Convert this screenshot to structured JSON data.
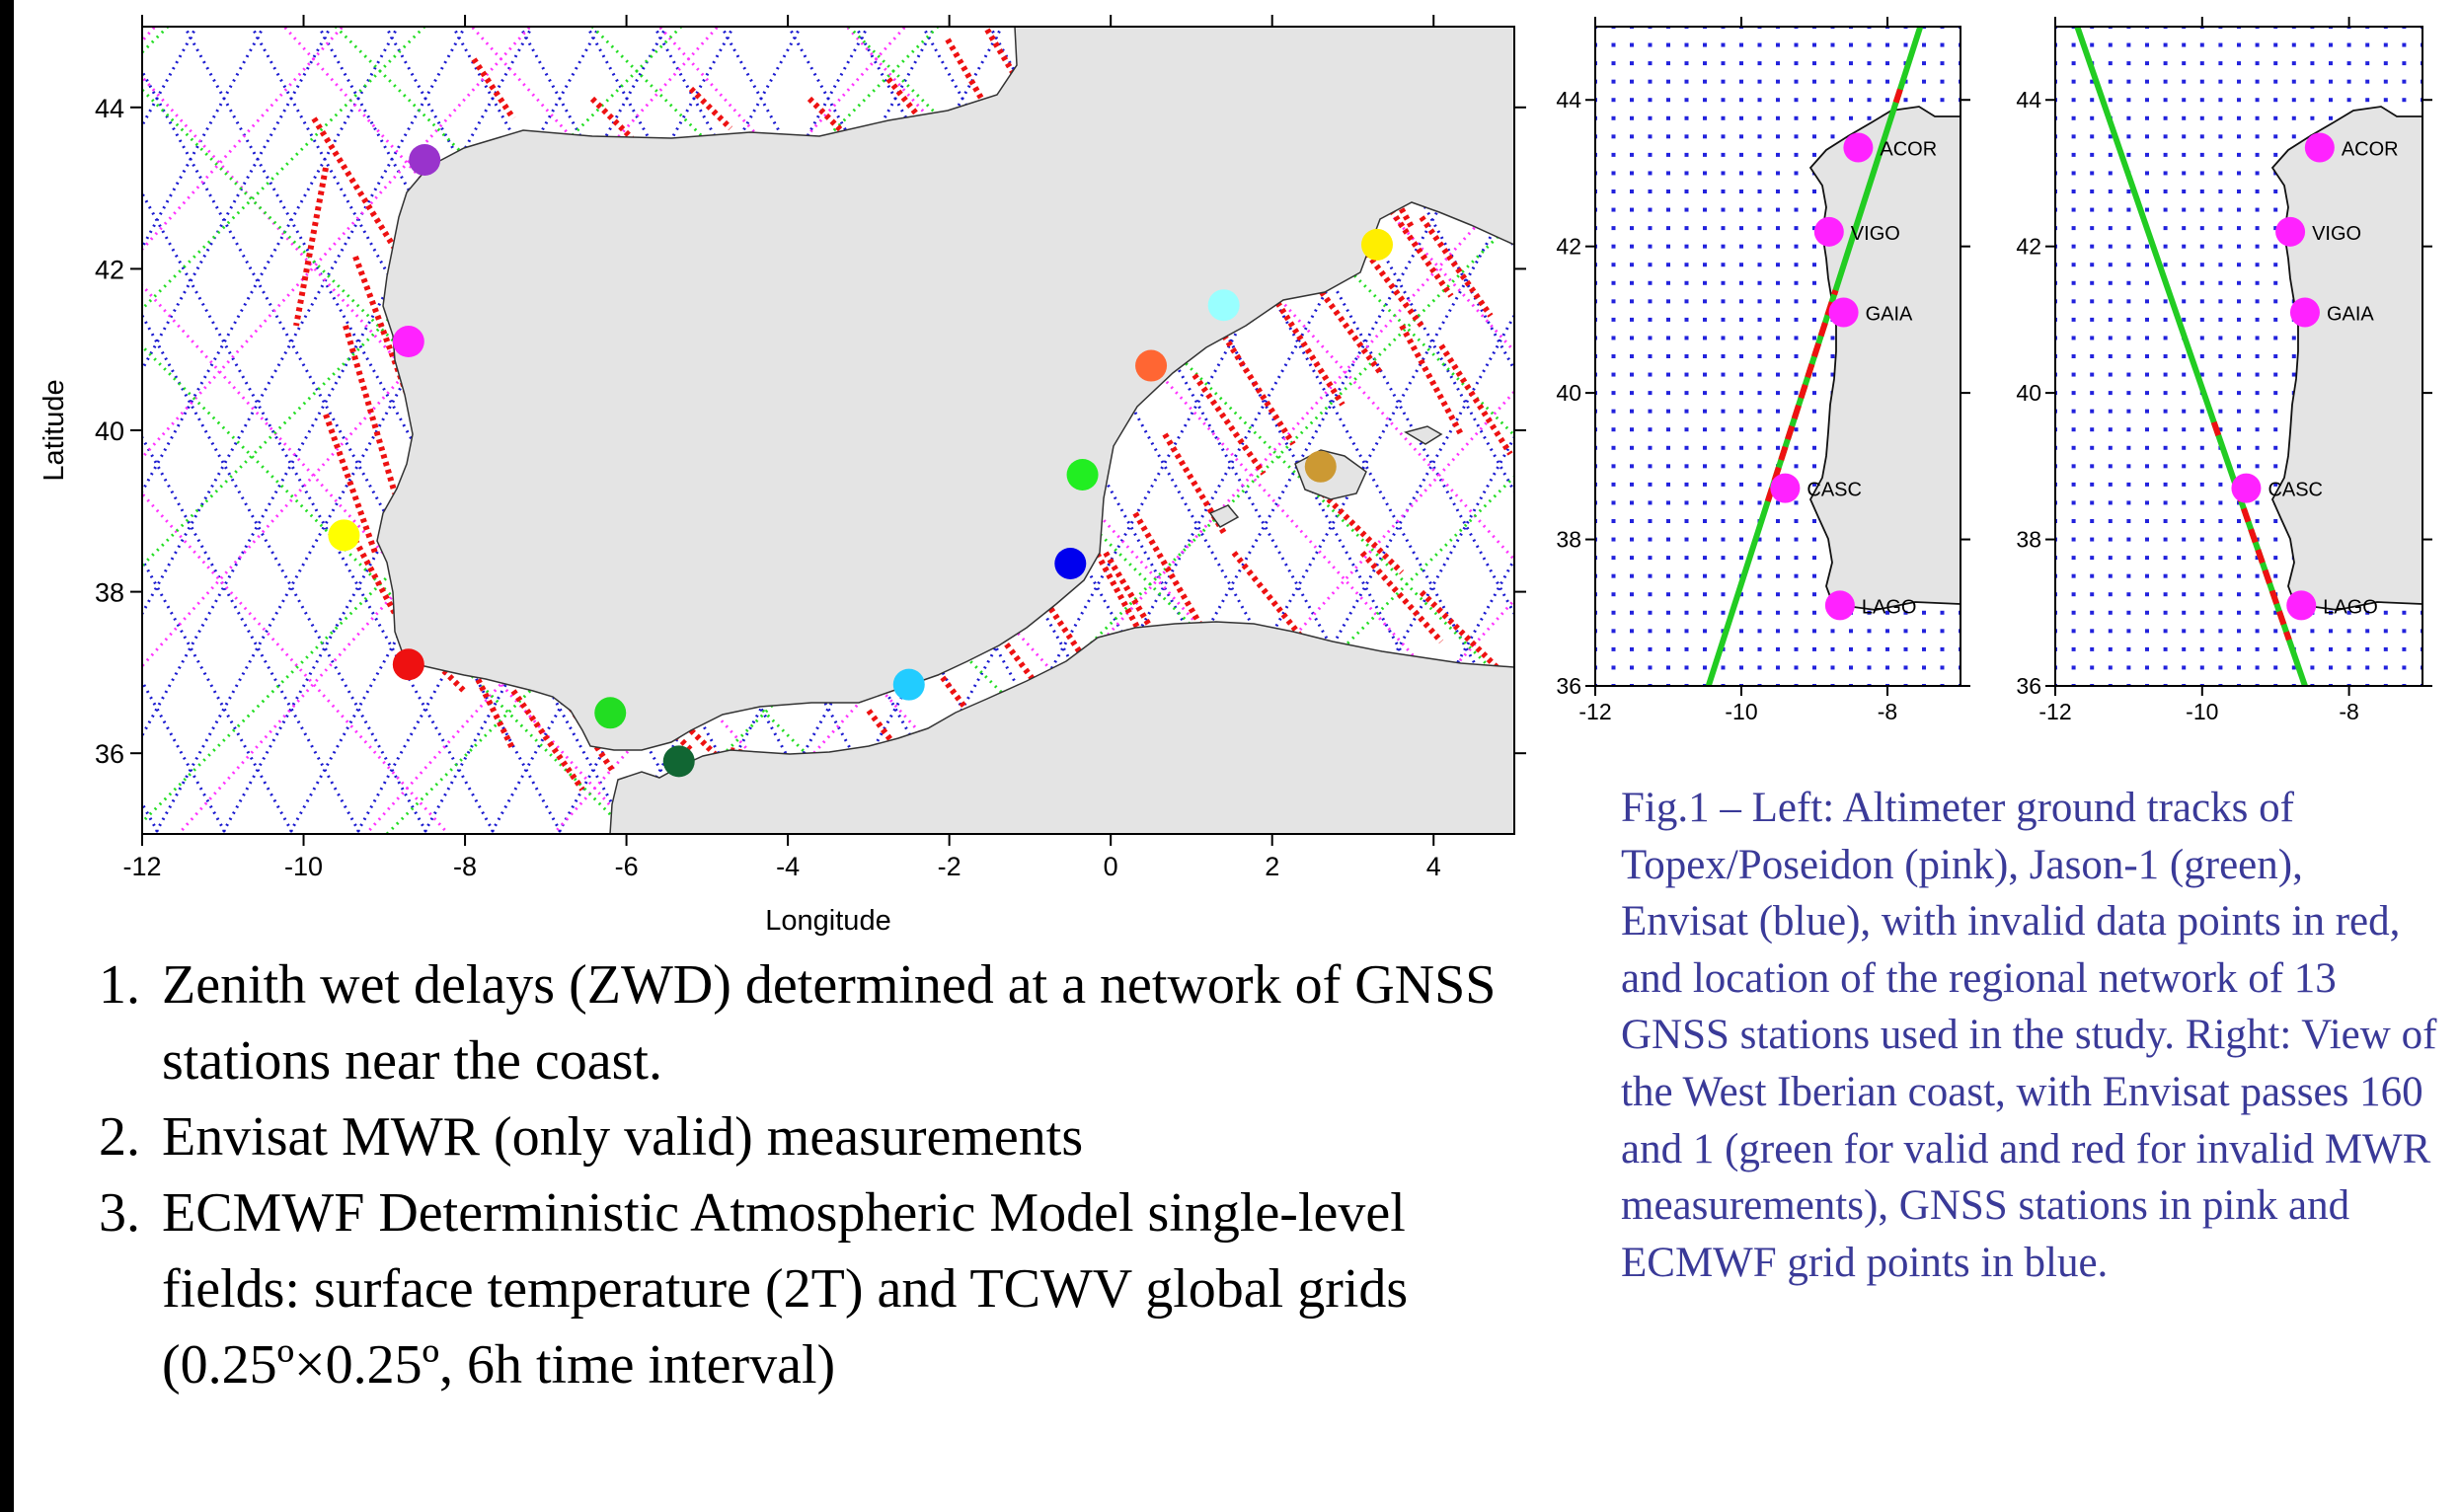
{
  "main_map": {
    "xlabel": "Longitude",
    "ylabel": "Latitude",
    "x_ticks": [
      "-12",
      "-10",
      "-8",
      "-6",
      "-4",
      "-2",
      "0",
      "2",
      "4"
    ],
    "y_ticks": [
      "44",
      "42",
      "40",
      "38",
      "36"
    ],
    "xlim": [
      -12,
      5
    ],
    "ylim": [
      35,
      45
    ],
    "land_color": "#e4e4e4",
    "track_colors": {
      "topex_poseidon": "#ff33ff",
      "jason1": "#22dd22",
      "envisat": "#1a1ad0",
      "invalid": "#ee1111"
    },
    "stations": [
      {
        "lon": -8.5,
        "lat": 43.35,
        "color": "#9933cc"
      },
      {
        "lon": -8.7,
        "lat": 41.1,
        "color": "#ff22ff"
      },
      {
        "lon": -9.5,
        "lat": 38.7,
        "color": "#ffff00"
      },
      {
        "lon": -8.7,
        "lat": 37.1,
        "color": "#ee1111"
      },
      {
        "lon": -6.2,
        "lat": 36.5,
        "color": "#22dd22"
      },
      {
        "lon": -5.35,
        "lat": 35.9,
        "color": "#116633"
      },
      {
        "lon": -2.5,
        "lat": 36.85,
        "color": "#22ccff"
      },
      {
        "lon": -0.5,
        "lat": 38.35,
        "color": "#0000ee"
      },
      {
        "lon": -0.35,
        "lat": 39.45,
        "color": "#22ee22"
      },
      {
        "lon": 0.5,
        "lat": 40.8,
        "color": "#ff6633"
      },
      {
        "lon": 1.4,
        "lat": 41.55,
        "color": "#99ffff"
      },
      {
        "lon": 2.6,
        "lat": 39.55,
        "color": "#cc9933"
      },
      {
        "lon": 3.3,
        "lat": 42.3,
        "color": "#ffee00"
      }
    ]
  },
  "inset_maps": {
    "x_ticks": [
      "-12",
      "-10",
      "-8"
    ],
    "y_ticks": [
      "44",
      "42",
      "40",
      "38",
      "36"
    ],
    "xlim": [
      -12,
      -7
    ],
    "ylim": [
      36,
      45
    ],
    "grid_step_deg": 0.25,
    "grid_color": "#2222dd",
    "station_color": "#ff22ff",
    "valid_color": "#22cc22",
    "invalid_color": "#ee1111",
    "stations": [
      {
        "name": "ACOR",
        "lon": -8.4,
        "lat": 43.35
      },
      {
        "name": "VIGO",
        "lon": -8.8,
        "lat": 42.2
      },
      {
        "name": "GAIA",
        "lon": -8.6,
        "lat": 41.1
      },
      {
        "name": "CASC",
        "lon": -9.4,
        "lat": 38.7
      },
      {
        "name": "LAGO",
        "lon": -8.65,
        "lat": 37.1
      }
    ],
    "left_pass": {
      "start": [
        -10.45,
        36.0
      ],
      "end": [
        -7.55,
        45.0
      ]
    },
    "right_pass": {
      "start": [
        -11.7,
        45.0
      ],
      "end": [
        -8.6,
        36.0
      ]
    }
  },
  "steps": [
    {
      "num": "1.",
      "text": "Zenith wet delays (ZWD) determined at a network of GNSS stations near the coast."
    },
    {
      "num": "2.",
      "text": "Envisat MWR (only valid) measurements"
    },
    {
      "num": "3.",
      "text": "ECMWF Deterministic Atmospheric Model single-level fields: surface temperature (2T) and  TCWV global grids (0.25º×0.25º,  6h time interval)"
    }
  ],
  "caption": "Fig.1 – Left: Altimeter ground tracks of Topex/Poseidon (pink), Jason-1 (green), Envisat (blue), with invalid data points in red, and location of the regional network of 13 GNSS stations used in the study. Right: View of the West Iberian coast, with Envisat passes 160 and 1 (green for valid and red for invalid MWR measurements), GNSS stations in pink and ECMWF grid points in blue."
}
